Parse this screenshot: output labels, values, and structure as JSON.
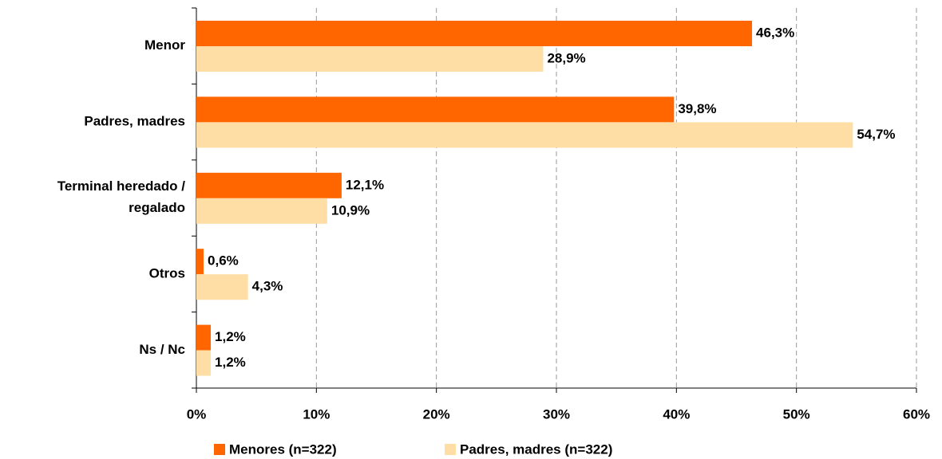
{
  "chart_data": {
    "type": "barh",
    "categories": [
      "Menor",
      "Padres, madres",
      "Terminal heredado / regalado",
      "Otros",
      "Ns / Nc"
    ],
    "series": [
      {
        "name": "Menores (n=322)",
        "color": "#ff6600",
        "values": [
          46.3,
          39.8,
          12.1,
          0.6,
          1.2
        ],
        "value_labels": [
          "46,3%",
          "39,8%",
          "12,1%",
          "0,6%",
          "1,2%"
        ]
      },
      {
        "name": "Padres, madres (n=322)",
        "color": "#ffdea6",
        "values": [
          28.9,
          54.7,
          10.9,
          4.3,
          1.2
        ],
        "value_labels": [
          "28,9%",
          "54,7%",
          "10,9%",
          "4,3%",
          "1,2%"
        ]
      }
    ],
    "xlim": [
      0,
      60
    ],
    "xticks": [
      {
        "value": 0,
        "label": "0%"
      },
      {
        "value": 10,
        "label": "10%"
      },
      {
        "value": 20,
        "label": "20%"
      },
      {
        "value": 30,
        "label": "30%"
      },
      {
        "value": 40,
        "label": "40%"
      },
      {
        "value": 50,
        "label": "50%"
      },
      {
        "value": 60,
        "label": "60%"
      }
    ],
    "grid": true,
    "legend": "bottom"
  }
}
